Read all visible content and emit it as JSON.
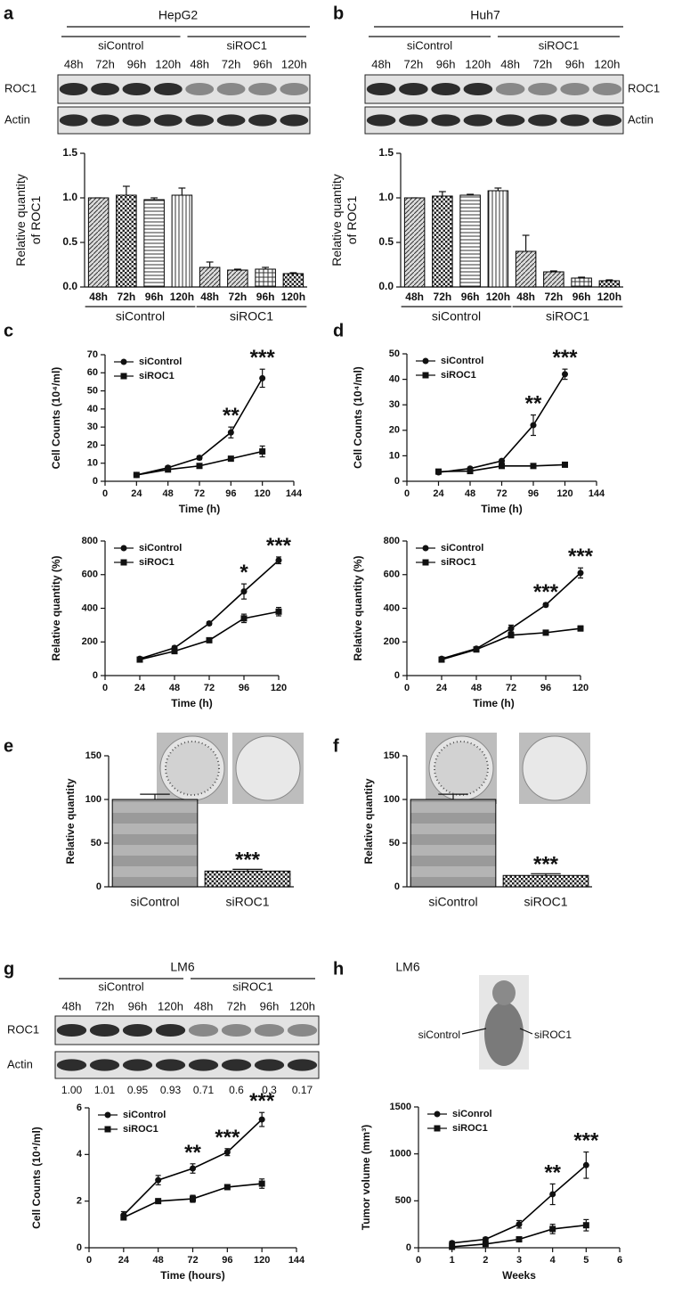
{
  "panel_labels": [
    "a",
    "b",
    "c",
    "d",
    "e",
    "f",
    "g",
    "h"
  ],
  "blots": [
    {
      "title": "HepG2",
      "groups": [
        "siControl",
        "siROC1"
      ],
      "times": [
        "48h",
        "72h",
        "96h",
        "120h",
        "48h",
        "72h",
        "96h",
        "120h"
      ],
      "rows": [
        "ROC1",
        "Actin"
      ]
    },
    {
      "title": "Huh7",
      "groups": [
        "siControl",
        "siROC1"
      ],
      "times": [
        "48h",
        "72h",
        "96h",
        "120h",
        "48h",
        "72h",
        "96h",
        "120h"
      ],
      "rows": [
        "ROC1",
        "Actin"
      ]
    },
    {
      "title": "LM6",
      "groups": [
        "siControl",
        "siROC1"
      ],
      "times": [
        "48h",
        "72h",
        "96h",
        "120h",
        "48h",
        "72h",
        "96h",
        "120h"
      ],
      "rows": [
        "ROC1",
        "Actin"
      ],
      "quantities": [
        "1.00",
        "1.01",
        "0.95",
        "0.93",
        "0.71",
        "0.6",
        "0.3",
        "0.17"
      ]
    }
  ],
  "mouse": {
    "title": "LM6",
    "labels": [
      "siControl",
      "siROC1"
    ]
  },
  "chart_data": [
    {
      "type": "bar",
      "ylabel": [
        "Relative quantity",
        "of ROC1"
      ],
      "categories": [
        "48h",
        "72h",
        "96h",
        "120h",
        "48h",
        "72h",
        "96h",
        "120h"
      ],
      "groups": [
        "siControl",
        "siROC1"
      ],
      "values": [
        1.0,
        1.03,
        0.98,
        1.03,
        0.22,
        0.19,
        0.2,
        0.15
      ],
      "errors": [
        0,
        0.1,
        0.02,
        0.08,
        0.06,
        0.01,
        0.02,
        0.01
      ],
      "color": "#000000",
      "ylim": [
        0,
        1.5
      ],
      "yticks": [
        {
          "value": 0,
          "label": "0.0"
        },
        {
          "value": 0.5,
          "label": "0.5"
        },
        {
          "value": 1,
          "label": "1.0"
        },
        {
          "value": 1.5,
          "label": "1.5"
        }
      ]
    },
    {
      "type": "bar",
      "ylabel": [
        "Relative quantity",
        "of ROC1"
      ],
      "categories": [
        "48h",
        "72h",
        "96h",
        "120h",
        "48h",
        "72h",
        "96h",
        "120h"
      ],
      "groups": [
        "siControl",
        "siROC1"
      ],
      "values": [
        1.0,
        1.02,
        1.03,
        1.08,
        0.4,
        0.17,
        0.1,
        0.07
      ],
      "errors": [
        0,
        0.05,
        0.01,
        0.03,
        0.18,
        0.01,
        0.01,
        0.01
      ],
      "color": "#000000",
      "ylim": [
        0,
        1.5
      ],
      "yticks": [
        {
          "value": 0,
          "label": "0.0"
        },
        {
          "value": 0.5,
          "label": "0.5"
        },
        {
          "value": 1,
          "label": "1.0"
        },
        {
          "value": 1.5,
          "label": "1.5"
        }
      ]
    },
    {
      "type": "line",
      "ylabel": "Cell Counts (10⁴/ml)",
      "xlabel": "Time (h)",
      "x": [
        24,
        48,
        72,
        96,
        120
      ],
      "series": [
        {
          "name": "siControl",
          "marker": "circle",
          "color": "#000000",
          "values": [
            3.5,
            7.5,
            13,
            27,
            57
          ],
          "errors": [
            0.5,
            1,
            1,
            3,
            5
          ]
        },
        {
          "name": "siROC1",
          "marker": "square",
          "color": "#000000",
          "values": [
            3.5,
            6.5,
            8.5,
            12.5,
            16.5
          ],
          "errors": [
            0.5,
            0.5,
            0.5,
            1,
            3
          ]
        }
      ],
      "xlim": [
        0,
        144
      ],
      "xticks": [
        0,
        24,
        48,
        72,
        96,
        120,
        144
      ],
      "ylim": [
        0,
        70
      ],
      "yticks": [
        0,
        10,
        20,
        30,
        40,
        50,
        60,
        70
      ],
      "legend": "upper left",
      "annotations": [
        {
          "x": 96,
          "text": "**"
        },
        {
          "x": 120,
          "text": "***"
        }
      ]
    },
    {
      "type": "line",
      "ylabel": "Relative quantity (%)",
      "xlabel": "Time (h)",
      "x": [
        24,
        48,
        72,
        96,
        120
      ],
      "series": [
        {
          "name": "siControl",
          "marker": "circle",
          "color": "#000000",
          "values": [
            100,
            165,
            310,
            500,
            685
          ],
          "errors": [
            5,
            10,
            10,
            45,
            20
          ]
        },
        {
          "name": "siROC1",
          "marker": "square",
          "color": "#000000",
          "values": [
            95,
            145,
            210,
            340,
            380
          ],
          "errors": [
            5,
            5,
            10,
            25,
            25
          ]
        }
      ],
      "xlim": [
        0,
        120
      ],
      "xticks": [
        0,
        24,
        48,
        72,
        96,
        120
      ],
      "ylim": [
        0,
        800
      ],
      "yticks": [
        0,
        200,
        400,
        600,
        800
      ],
      "legend": "upper left",
      "annotations": [
        {
          "x": 96,
          "text": "*"
        },
        {
          "x": 120,
          "text": "***"
        }
      ]
    },
    {
      "type": "line",
      "ylabel": "Cell Counts (10⁴/ml)",
      "xlabel": "Time (h)",
      "x": [
        24,
        48,
        72,
        96,
        120
      ],
      "series": [
        {
          "name": "siControl",
          "marker": "circle",
          "color": "#000000",
          "values": [
            3.5,
            5,
            8,
            22,
            42
          ],
          "errors": [
            0.5,
            0.5,
            0.5,
            4,
            2
          ]
        },
        {
          "name": "siROC1",
          "marker": "square",
          "color": "#000000",
          "values": [
            3.8,
            4,
            6,
            6,
            6.5
          ],
          "errors": [
            0.3,
            0.3,
            0.3,
            0.3,
            0.3
          ]
        }
      ],
      "xlim": [
        0,
        144
      ],
      "xticks": [
        0,
        24,
        48,
        72,
        96,
        120,
        144
      ],
      "ylim": [
        0,
        50
      ],
      "yticks": [
        0,
        10,
        20,
        30,
        40,
        50
      ],
      "legend": "upper left",
      "annotations": [
        {
          "x": 96,
          "text": "**"
        },
        {
          "x": 120,
          "text": "***"
        }
      ]
    },
    {
      "type": "line",
      "ylabel": "Relative quantity (%)",
      "xlabel": "Time (h)",
      "x": [
        24,
        48,
        72,
        96,
        120
      ],
      "series": [
        {
          "name": "siControl",
          "marker": "circle",
          "color": "#000000",
          "values": [
            100,
            160,
            280,
            420,
            610
          ],
          "errors": [
            5,
            10,
            20,
            10,
            30
          ]
        },
        {
          "name": "siROC1",
          "marker": "square",
          "color": "#000000",
          "values": [
            95,
            155,
            240,
            255,
            280
          ],
          "errors": [
            5,
            10,
            15,
            10,
            15
          ]
        }
      ],
      "xlim": [
        0,
        120
      ],
      "xticks": [
        0,
        24,
        48,
        72,
        96,
        120
      ],
      "ylim": [
        0,
        800
      ],
      "yticks": [
        0,
        200,
        400,
        600,
        800
      ],
      "legend": "upper left",
      "annotations": [
        {
          "x": 96,
          "text": "***"
        },
        {
          "x": 120,
          "text": "***"
        }
      ]
    },
    {
      "type": "bar",
      "ylabel": "Relative quantity",
      "categories": [
        "siControl",
        "siROC1"
      ],
      "values": [
        100,
        18
      ],
      "errors": [
        6,
        2
      ],
      "color": "#000000",
      "ylim": [
        0,
        150
      ],
      "yticks": [
        0,
        50,
        100,
        150
      ],
      "annotations": [
        {
          "x": "siROC1",
          "text": "***"
        }
      ]
    },
    {
      "type": "bar",
      "ylabel": "Relative quantity",
      "categories": [
        "siControl",
        "siROC1"
      ],
      "values": [
        100,
        13
      ],
      "errors": [
        6,
        2
      ],
      "color": "#000000",
      "ylim": [
        0,
        150
      ],
      "yticks": [
        0,
        50,
        100,
        150
      ],
      "annotations": [
        {
          "x": "siROC1",
          "text": "***"
        }
      ]
    },
    {
      "type": "line",
      "ylabel": "Cell Counts (10⁴/ml)",
      "xlabel": "Time (hours)",
      "x": [
        24,
        48,
        72,
        96,
        120
      ],
      "series": [
        {
          "name": "siControl",
          "marker": "circle",
          "color": "#000000",
          "values": [
            1.4,
            2.9,
            3.4,
            4.1,
            5.5
          ],
          "errors": [
            0.15,
            0.2,
            0.2,
            0.15,
            0.3
          ]
        },
        {
          "name": "siROC1",
          "marker": "square",
          "color": "#000000",
          "values": [
            1.3,
            2.0,
            2.1,
            2.6,
            2.75
          ],
          "errors": [
            0.1,
            0.1,
            0.15,
            0.05,
            0.2
          ]
        }
      ],
      "xlim": [
        0,
        144
      ],
      "xticks": [
        0,
        24,
        48,
        72,
        96,
        120,
        144
      ],
      "ylim": [
        0,
        6
      ],
      "yticks": [
        0,
        2,
        4,
        6
      ],
      "legend": "upper left",
      "annotations": [
        {
          "x": 72,
          "text": "**"
        },
        {
          "x": 96,
          "text": "***"
        },
        {
          "x": 120,
          "text": "***"
        }
      ]
    },
    {
      "type": "line",
      "ylabel": "Tumor volume (mm³)",
      "xlabel": "Weeks",
      "x": [
        1,
        2,
        3,
        4,
        5
      ],
      "series": [
        {
          "name": "siConrol",
          "marker": "circle",
          "color": "#000000",
          "values": [
            50,
            90,
            250,
            570,
            880
          ],
          "errors": [
            20,
            20,
            40,
            110,
            140
          ]
        },
        {
          "name": "siROC1",
          "marker": "square",
          "color": "#000000",
          "values": [
            10,
            40,
            90,
            200,
            240
          ],
          "errors": [
            5,
            10,
            15,
            50,
            60
          ]
        }
      ],
      "xlim": [
        0,
        6
      ],
      "xticks": [
        0,
        1,
        2,
        3,
        4,
        5,
        6
      ],
      "ylim": [
        0,
        1500
      ],
      "yticks": [
        0,
        500,
        1000,
        1500
      ],
      "legend": "upper left",
      "annotations": [
        {
          "x": 4,
          "text": "**"
        },
        {
          "x": 5,
          "text": "***"
        }
      ]
    }
  ]
}
